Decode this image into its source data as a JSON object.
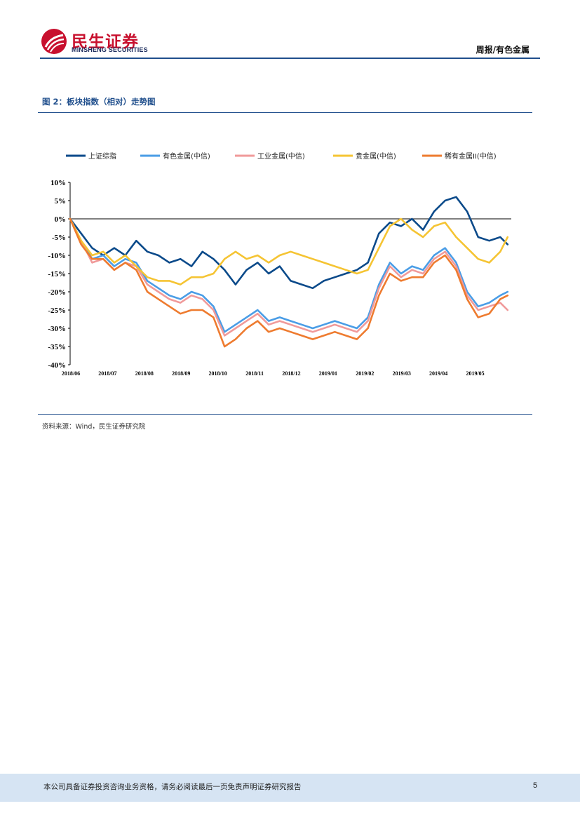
{
  "header": {
    "brand_cn": "民生证券",
    "brand_en": "MINSHENG SECURITIES",
    "section": "周报/有色金属",
    "brand_color": "#c8102e"
  },
  "figure": {
    "title": "图 2：板块指数（相对）走势图",
    "source": "资料来源：Wind，民生证券研究院"
  },
  "footer": {
    "disclaimer": "本公司具备证券投资咨询业务资格，请务必阅读最后一页免责声明证券研究报告",
    "page": "5"
  },
  "chart_data": {
    "type": "line",
    "title": "",
    "xlabel": "",
    "ylabel": "",
    "ylim": [
      -40,
      10
    ],
    "yticks": [
      10,
      5,
      0,
      -5,
      -10,
      -15,
      -20,
      -25,
      -30,
      -35,
      -40
    ],
    "ytick_labels": [
      "10%",
      "5%",
      "0%",
      "-5%",
      "-10%",
      "-15%",
      "-20%",
      "-25%",
      "-30%",
      "-35%",
      "-40%"
    ],
    "xlim": [
      0,
      12
    ],
    "xticks": [
      0,
      1,
      2,
      3,
      4,
      5,
      6,
      7,
      8,
      9,
      10,
      11
    ],
    "xtick_labels": [
      "2018/06",
      "2018/07",
      "2018/08",
      "2018/09",
      "2018/10",
      "2018/11",
      "2018/12",
      "2019/01",
      "2019/02",
      "2019/03",
      "2019/04",
      "2019/05"
    ],
    "legend_position": "top",
    "x": [
      0,
      0.3,
      0.6,
      0.9,
      1.2,
      1.5,
      1.8,
      2.1,
      2.4,
      2.7,
      3.0,
      3.3,
      3.6,
      3.9,
      4.2,
      4.5,
      4.8,
      5.1,
      5.4,
      5.7,
      6.0,
      6.3,
      6.6,
      6.9,
      7.2,
      7.5,
      7.8,
      8.1,
      8.4,
      8.7,
      9.0,
      9.3,
      9.6,
      9.9,
      10.2,
      10.5,
      10.8,
      11.1,
      11.4,
      11.7,
      11.9
    ],
    "series": [
      {
        "name": "上证综指",
        "color": "#0b4a8a",
        "values": [
          0,
          -4,
          -8,
          -10,
          -8,
          -10,
          -6,
          -9,
          -10,
          -12,
          -11,
          -13,
          -9,
          -11,
          -14,
          -18,
          -14,
          -12,
          -15,
          -13,
          -17,
          -18,
          -19,
          -17,
          -16,
          -15,
          -14,
          -12,
          -4,
          -1,
          -2,
          0,
          -3,
          2,
          5,
          6,
          2,
          -5,
          -6,
          -5,
          -7
        ]
      },
      {
        "name": "有色金属(中信)",
        "color": "#4a9de6",
        "values": [
          0,
          -6,
          -11,
          -10,
          -13,
          -11,
          -12,
          -17,
          -19,
          -21,
          -22,
          -20,
          -21,
          -24,
          -31,
          -29,
          -27,
          -25,
          -28,
          -27,
          -28,
          -29,
          -30,
          -29,
          -28,
          -29,
          -30,
          -27,
          -18,
          -12,
          -15,
          -13,
          -14,
          -10,
          -8,
          -12,
          -20,
          -24,
          -23,
          -21,
          -20
        ]
      },
      {
        "name": "工业金属(中信)",
        "color": "#f09a9a",
        "values": [
          0,
          -6,
          -12,
          -11,
          -14,
          -12,
          -13,
          -18,
          -20,
          -22,
          -23,
          -21,
          -22,
          -25,
          -32,
          -30,
          -28,
          -26,
          -29,
          -28,
          -29,
          -30,
          -31,
          -30,
          -29,
          -30,
          -31,
          -28,
          -19,
          -13,
          -16,
          -14,
          -15,
          -11,
          -9,
          -13,
          -21,
          -25,
          -24,
          -23,
          -25
        ]
      },
      {
        "name": "贵金属(中信)",
        "color": "#f5c433",
        "values": [
          0,
          -6,
          -10,
          -9,
          -12,
          -10,
          -13,
          -16,
          -17,
          -17,
          -18,
          -16,
          -16,
          -15,
          -11,
          -9,
          -11,
          -10,
          -12,
          -10,
          -9,
          -10,
          -11,
          -12,
          -13,
          -14,
          -15,
          -14,
          -8,
          -2,
          0,
          -3,
          -5,
          -2,
          -1,
          -5,
          -8,
          -11,
          -12,
          -9,
          -5
        ]
      },
      {
        "name": "稀有金属II(中信)",
        "color": "#ee7b2f",
        "values": [
          0,
          -7,
          -11,
          -11,
          -14,
          -12,
          -14,
          -20,
          -22,
          -24,
          -26,
          -25,
          -25,
          -27,
          -35,
          -33,
          -30,
          -28,
          -31,
          -30,
          -31,
          -32,
          -33,
          -32,
          -31,
          -32,
          -33,
          -30,
          -21,
          -15,
          -17,
          -16,
          -16,
          -12,
          -10,
          -14,
          -22,
          -27,
          -26,
          -22,
          -21
        ]
      }
    ]
  }
}
